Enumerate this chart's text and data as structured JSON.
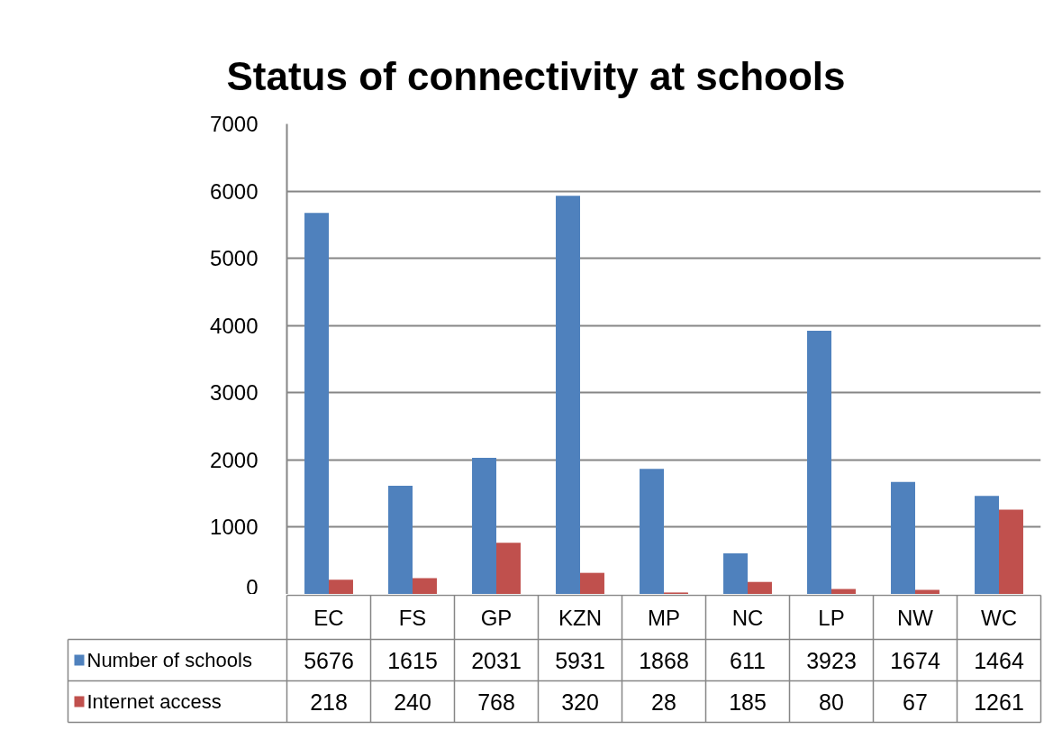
{
  "chart_data": {
    "type": "bar",
    "title": "Status of connectivity at schools",
    "categories": [
      "EC",
      "FS",
      "GP",
      "KZN",
      "MP",
      "NC",
      "LP",
      "NW",
      "WC"
    ],
    "series": [
      {
        "name": "Number of schools",
        "color": "#4f81bd",
        "values": [
          5676,
          1615,
          2031,
          5931,
          1868,
          611,
          3923,
          1674,
          1464
        ]
      },
      {
        "name": "Internet access",
        "color": "#c0504d",
        "values": [
          218,
          240,
          768,
          320,
          28,
          185,
          80,
          67,
          1261
        ]
      }
    ],
    "ylim": [
      0,
      7000
    ],
    "yticks": [
      0,
      1000,
      2000,
      3000,
      4000,
      5000,
      6000,
      7000
    ],
    "grid": "y",
    "legend": "bottom",
    "data_labels": true
  }
}
